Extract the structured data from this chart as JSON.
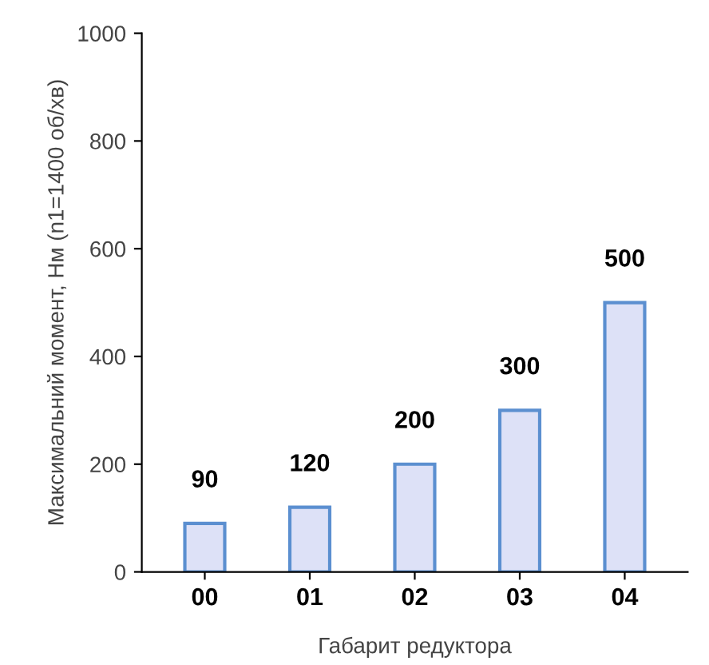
{
  "chart_data": {
    "type": "bar",
    "xlabel": "Габарит редуктора",
    "ylabel": "Максимальний момент, Нм (n1=1400 об/хв)",
    "categories": [
      "00",
      "01",
      "02",
      "03",
      "04"
    ],
    "values": [
      90,
      120,
      200,
      300,
      500
    ],
    "color": "#dde1f7",
    "ylim": [
      0,
      1000
    ],
    "yticks": [
      0,
      200,
      400,
      600,
      800,
      1000
    ],
    "data_labels": true,
    "grid": false,
    "legend": false
  }
}
